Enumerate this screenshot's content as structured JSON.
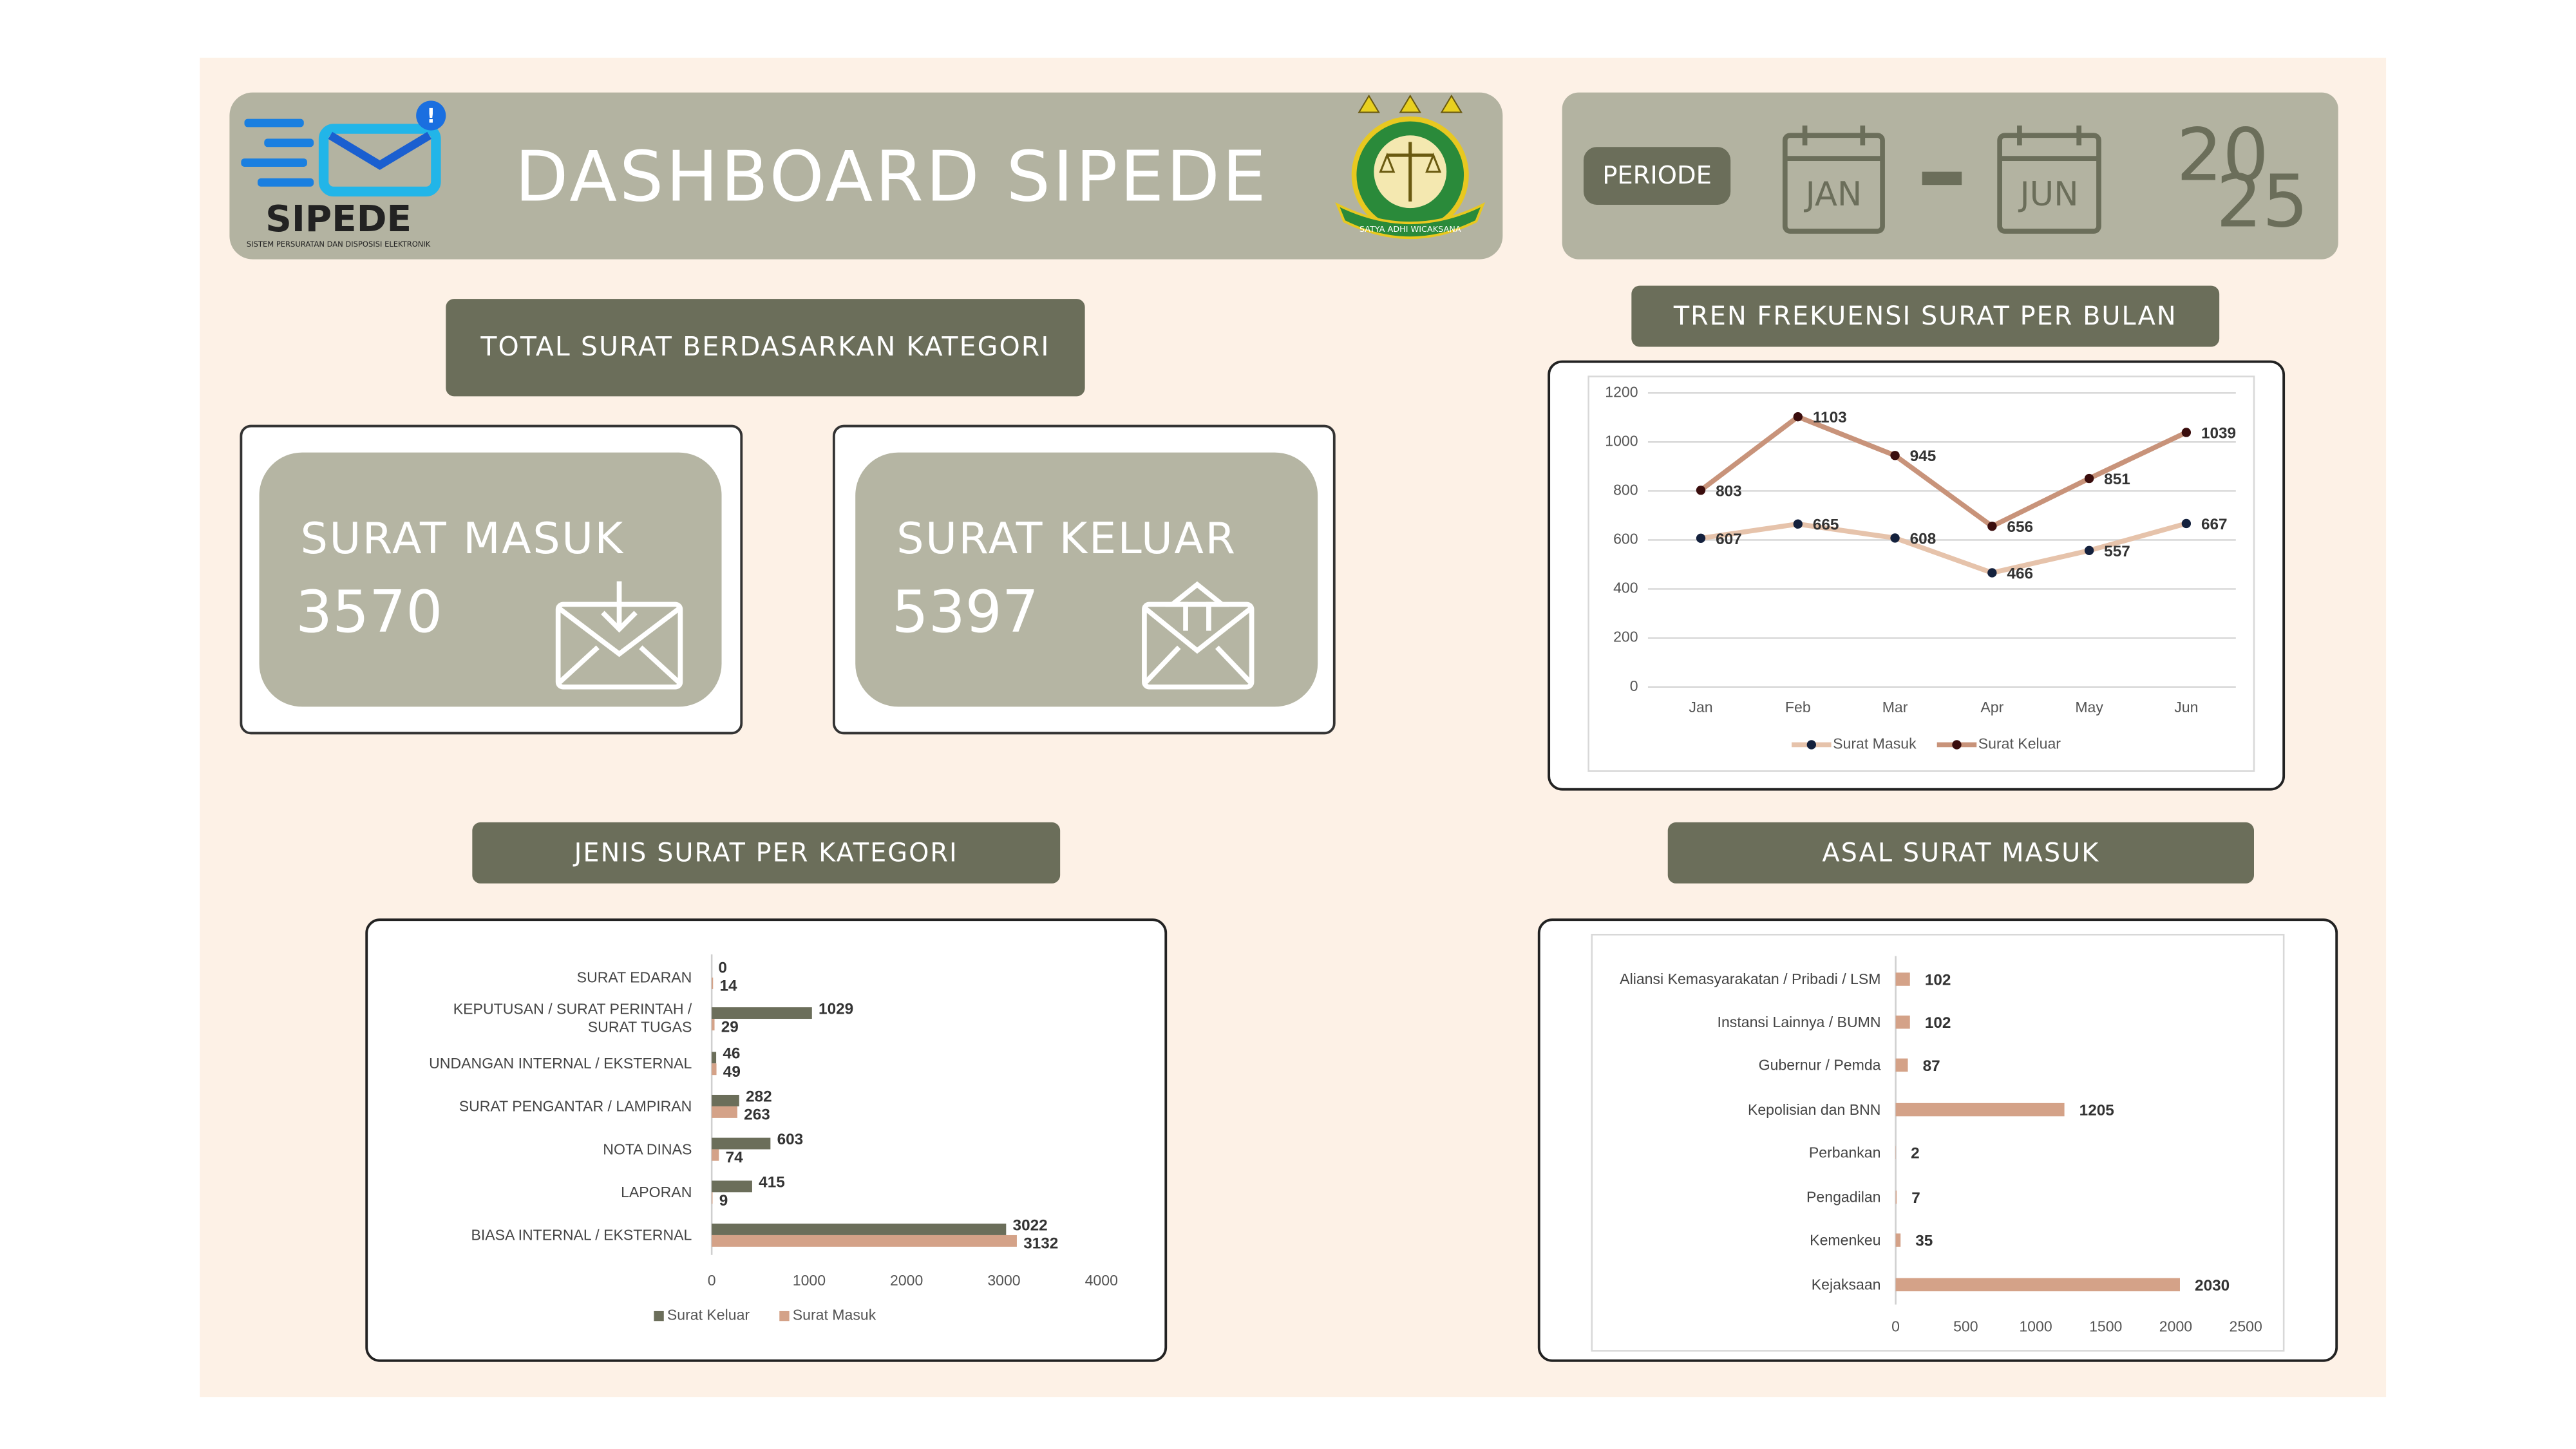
{
  "header": {
    "title": "DASHBOARD SIPEDE",
    "logo": "SIPEDE",
    "tagline": "SISTEM PERSURATAN DAN DISPOSISI ELEKTRONIK",
    "emblem": "SATYA ADHI WICAKSANA"
  },
  "period": {
    "label": "PERIODE",
    "from": "JAN",
    "to": "JUN",
    "year": [
      "20",
      "25"
    ]
  },
  "cards": {
    "title": "TOTAL SURAT BERDASARKAN KATEGORI",
    "items": [
      {
        "label": "SURAT MASUK",
        "value": 3570
      },
      {
        "label": "SURAT KELUAR",
        "value": 5397
      }
    ]
  },
  "chart_data": [
    {
      "type": "line",
      "title": "TREN FREKUENSI SURAT PER BULAN",
      "categories": [
        "Jan",
        "Feb",
        "Mar",
        "Apr",
        "May",
        "Jun"
      ],
      "series": [
        {
          "name": "Surat Masuk",
          "color": "#e6c3ab",
          "marker_color": "#14213d",
          "values": [
            607,
            665,
            608,
            466,
            557,
            667
          ]
        },
        {
          "name": "Surat Keluar",
          "color": "#c8937a",
          "marker_color": "#3a0d0d",
          "values": [
            803,
            1103,
            945,
            656,
            851,
            1039
          ]
        }
      ],
      "ylim": [
        0,
        1200
      ],
      "yticks": [
        0,
        200,
        400,
        600,
        800,
        1000,
        1200
      ],
      "grid": true,
      "legend": "bottom"
    },
    {
      "type": "hbar",
      "title": "JENIS SURAT PER KATEGORI",
      "categories": [
        "SURAT EDARAN",
        "KEPUTUSAN / SURAT PERINTAH / SURAT TUGAS",
        "UNDANGAN INTERNAL / EKSTERNAL",
        "SURAT PENGANTAR / LAMPIRAN",
        "NOTA DINAS",
        "LAPORAN",
        "BIASA INTERNAL / EKSTERNAL"
      ],
      "series": [
        {
          "name": "Surat Keluar",
          "color": "#6b6e5a",
          "values": [
            0,
            1029,
            46,
            282,
            603,
            415,
            3022
          ]
        },
        {
          "name": "Surat Masuk",
          "color": "#d4a288",
          "values": [
            14,
            29,
            49,
            263,
            74,
            9,
            3132
          ]
        }
      ],
      "xlim": [
        0,
        4000
      ],
      "xticks": [
        0,
        1000,
        2000,
        3000,
        4000
      ],
      "grid": false,
      "legend": "bottom"
    },
    {
      "type": "hbar",
      "title": "ASAL SURAT MASUK",
      "categories": [
        "Aliansi Kemasyarakatan / Pribadi / LSM",
        "Instansi Lainnya / BUMN",
        "Gubernur / Pemda",
        "Kepolisian dan BNN",
        "Perbankan",
        "Pengadilan",
        "Kemenkeu",
        "Kejaksaan"
      ],
      "series": [
        {
          "color": "#d4a288",
          "values": [
            102,
            102,
            87,
            1205,
            2,
            7,
            35,
            2030
          ]
        }
      ],
      "xlim": [
        0,
        2500
      ],
      "xticks": [
        0,
        500,
        1000,
        1500,
        2000,
        2500
      ],
      "grid": false,
      "legend": "none"
    }
  ]
}
